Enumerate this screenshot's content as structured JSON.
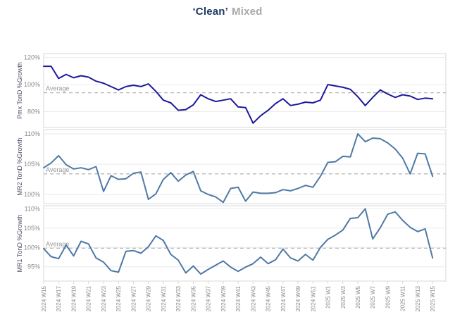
{
  "title": {
    "part1": "‘Clean’",
    "part2": "Mixed"
  },
  "chart_data": {
    "type": "line",
    "x_axis": "week",
    "categories": [
      "2024 W15",
      "2024 W16",
      "2024 W17",
      "2024 W18",
      "2024 W19",
      "2024 W20",
      "2024 W21",
      "2024 W22",
      "2024 W23",
      "2024 W24",
      "2024 W25",
      "2024 W26",
      "2024 W27",
      "2024 W28",
      "2024 W29",
      "2024 W30",
      "2024 W31",
      "2024 W32",
      "2024 W33",
      "2024 W34",
      "2024 W35",
      "2024 W36",
      "2024 W37",
      "2024 W38",
      "2024 W39",
      "2024 W40",
      "2024 W41",
      "2024 W42",
      "2024 W43",
      "2024 W44",
      "2024 W45",
      "2024 W46",
      "2024 W47",
      "2024 W48",
      "2024 W49",
      "2024 W50",
      "2024 W51",
      "2024 W52",
      "2025 W1",
      "2025 W2",
      "2025 W3",
      "2025 W4",
      "2025 W5",
      "2025 W6",
      "2025 W7",
      "2025 W8",
      "2025 W9",
      "2025 W10",
      "2025 W11",
      "2025 W12",
      "2025 W13",
      "2025 W14",
      "2025 W15"
    ],
    "x_labels_every": 2,
    "grid": "horizontal-only",
    "legend": "none",
    "panels": [
      {
        "ylabel": "Pmx TonD %Growth",
        "color": "#1c1a9c",
        "yticks": [
          120,
          100,
          80
        ],
        "ytick_labels": [
          "120%",
          "100%",
          "80%"
        ],
        "ylim": [
          68.3,
          122.9
        ],
        "average": 94,
        "average_label": "Average",
        "values": [
          113.5,
          113.5,
          104.5,
          107.5,
          105,
          106.5,
          105.5,
          102.5,
          101,
          98.5,
          96,
          98.5,
          99.5,
          98.5,
          100.5,
          95,
          88.5,
          86.5,
          81,
          81.5,
          85,
          92.5,
          89.5,
          87.5,
          88.5,
          89.5,
          83.5,
          83,
          71.5,
          77,
          81,
          86,
          89.5,
          84.5,
          85.5,
          87,
          86.5,
          88.5,
          100,
          99,
          98,
          96.5,
          91,
          84.5,
          90.5,
          96,
          93,
          90.5,
          92.5,
          91.5,
          89,
          90,
          89.5
        ]
      },
      {
        "ylabel": "MR2 TonD %Growth",
        "color": "#4e79a7",
        "yticks": [
          110,
          105,
          100
        ],
        "ytick_labels": [
          "110%",
          "105%",
          "100%"
        ],
        "ylim": [
          98.5,
          110.7
        ],
        "average": 103.4,
        "average_label": "Average",
        "values": [
          104.4,
          105.2,
          106.4,
          104.9,
          104.2,
          104.4,
          104.1,
          104.6,
          100.5,
          103.1,
          102.5,
          102.6,
          103.5,
          103.7,
          99.2,
          100.1,
          102.5,
          103.6,
          102.2,
          103.2,
          103.8,
          100.6,
          100.0,
          99.6,
          98.7,
          101.0,
          101.2,
          98.9,
          100.4,
          100.2,
          100.2,
          100.3,
          100.8,
          100.6,
          101.0,
          101.5,
          101.2,
          103.0,
          105.3,
          105.4,
          106.3,
          106.2,
          110.0,
          108.7,
          109.3,
          109.2,
          108.5,
          107.5,
          106.0,
          103.4,
          106.8,
          106.7,
          103.0
        ]
      },
      {
        "ylabel": "MR1 TonD %Growth",
        "color": "#4e79a7",
        "yticks": [
          110,
          105,
          100,
          95
        ],
        "ytick_labels": [
          "110%",
          "105%",
          "100%",
          "95%"
        ],
        "ylim": [
          91.3,
          110.8
        ],
        "average": 99.8,
        "average_label": "Average",
        "values": [
          99.7,
          97.6,
          97.1,
          100.6,
          97.8,
          101.6,
          100.9,
          97.3,
          96.2,
          94.0,
          93.6,
          99.0,
          99.2,
          98.5,
          100.2,
          103.0,
          101.8,
          98.2,
          96.7,
          93.4,
          95.2,
          93.1,
          94.3,
          95.4,
          96.5,
          94.9,
          93.8,
          94.9,
          95.8,
          97.5,
          95.8,
          96.8,
          99.6,
          97.3,
          96.5,
          98.2,
          96.7,
          100.0,
          102.1,
          103.2,
          104.5,
          107.5,
          107.7,
          110.0,
          102.2,
          105.1,
          108.6,
          109.2,
          107.0,
          105.2,
          104.1,
          104.8,
          97.3
        ]
      }
    ]
  },
  "colors": {
    "title_primary": "#1f3864",
    "title_secondary": "#a9a9a9",
    "navy_line": "#1c1a9c",
    "steel_line": "#4e79a7",
    "average_line": "#b9b9b9",
    "gridline": "#ebebeb",
    "panel_border": "#d9d9d9",
    "tick_text": "#8a8a8a"
  }
}
